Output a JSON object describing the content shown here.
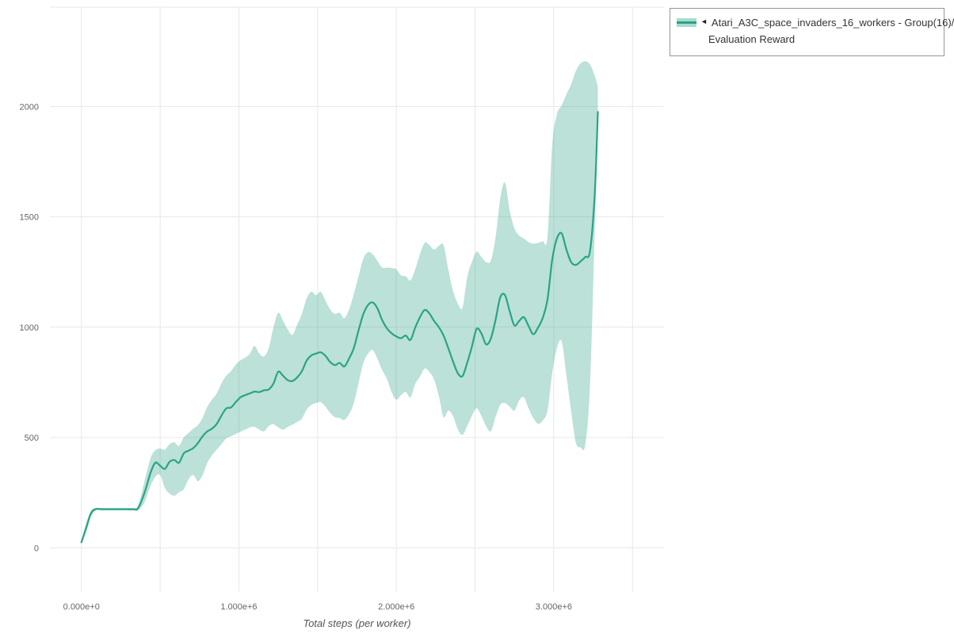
{
  "colors": {
    "line": "#2aa386",
    "band": "#2aa386",
    "band_opacity": 0.32,
    "grid": "#e7e7e7",
    "tick_text": "#666666",
    "axis_title_text": "#555555",
    "legend_border": "#979797",
    "legend_text": "#333333"
  },
  "legend": {
    "collapse_arrow": "◄",
    "series_label_line1": "Atari_A3C_space_invaders_16_workers - Group(16)/",
    "series_label_line2": "Evaluation Reward"
  },
  "chart_data": {
    "type": "line",
    "title": "",
    "xlabel": "Total steps (per worker)",
    "ylabel": "",
    "grid": true,
    "legend_position": "top-right",
    "x_unit_note": "x values in millions of steps",
    "xlim": [
      -0.2,
      3.7
    ],
    "ylim": [
      -200,
      2450
    ],
    "x_ticks": [
      {
        "v": 0,
        "label": "0.000e+0"
      },
      {
        "v": 1,
        "label": "1.000e+6"
      },
      {
        "v": 2,
        "label": "2.000e+6"
      },
      {
        "v": 3,
        "label": "3.000e+6"
      }
    ],
    "x_minor_grid": [
      0.5,
      1.5,
      2.5,
      3.5
    ],
    "y_ticks": [
      {
        "v": 0,
        "label": "0"
      },
      {
        "v": 500,
        "label": "500"
      },
      {
        "v": 1000,
        "label": "1000"
      },
      {
        "v": 1500,
        "label": "1500"
      },
      {
        "v": 2000,
        "label": "2000"
      },
      {
        "v": 2450,
        "label": ""
      }
    ],
    "series": [
      {
        "name": "Atari_A3C_space_invaders_16_workers - Group(16)/Evaluation Reward",
        "points_format": [
          "x_millions",
          "mean",
          "lower",
          "upper"
        ],
        "points": [
          [
            0.0,
            25,
            20,
            30
          ],
          [
            0.03,
            90,
            70,
            110
          ],
          [
            0.06,
            155,
            140,
            168
          ],
          [
            0.09,
            175,
            170,
            181
          ],
          [
            0.13,
            175,
            170,
            181
          ],
          [
            0.17,
            175,
            170,
            181
          ],
          [
            0.21,
            175,
            170,
            181
          ],
          [
            0.25,
            175,
            170,
            181
          ],
          [
            0.29,
            175,
            170,
            181
          ],
          [
            0.33,
            175,
            170,
            181
          ],
          [
            0.36,
            180,
            170,
            192
          ],
          [
            0.4,
            248,
            205,
            300
          ],
          [
            0.44,
            342,
            282,
            408
          ],
          [
            0.47,
            386,
            322,
            442
          ],
          [
            0.5,
            372,
            330,
            450
          ],
          [
            0.53,
            358,
            272,
            445
          ],
          [
            0.56,
            390,
            246,
            470
          ],
          [
            0.59,
            398,
            236,
            478
          ],
          [
            0.62,
            386,
            252,
            462
          ],
          [
            0.65,
            428,
            266,
            500
          ],
          [
            0.68,
            440,
            310,
            520
          ],
          [
            0.71,
            452,
            330,
            540
          ],
          [
            0.74,
            475,
            302,
            556
          ],
          [
            0.77,
            506,
            330,
            590
          ],
          [
            0.8,
            528,
            386,
            640
          ],
          [
            0.83,
            540,
            420,
            672
          ],
          [
            0.86,
            562,
            446,
            700
          ],
          [
            0.89,
            600,
            470,
            746
          ],
          [
            0.92,
            632,
            496,
            780
          ],
          [
            0.95,
            636,
            506,
            800
          ],
          [
            0.98,
            660,
            516,
            830
          ],
          [
            1.01,
            682,
            526,
            850
          ],
          [
            1.04,
            692,
            536,
            862
          ],
          [
            1.07,
            700,
            546,
            880
          ],
          [
            1.1,
            708,
            548,
            915
          ],
          [
            1.13,
            706,
            536,
            880
          ],
          [
            1.16,
            714,
            528,
            868
          ],
          [
            1.19,
            718,
            552,
            905
          ],
          [
            1.22,
            745,
            560,
            1000
          ],
          [
            1.25,
            798,
            546,
            1065
          ],
          [
            1.28,
            780,
            536,
            1030
          ],
          [
            1.31,
            760,
            548,
            990
          ],
          [
            1.34,
            756,
            558,
            965
          ],
          [
            1.37,
            772,
            570,
            1010
          ],
          [
            1.4,
            800,
            586,
            1060
          ],
          [
            1.43,
            848,
            626,
            1130
          ],
          [
            1.46,
            872,
            648,
            1160
          ],
          [
            1.49,
            880,
            656,
            1145
          ],
          [
            1.52,
            886,
            660,
            1160
          ],
          [
            1.55,
            870,
            640,
            1120
          ],
          [
            1.58,
            842,
            612,
            1080
          ],
          [
            1.61,
            828,
            592,
            1060
          ],
          [
            1.64,
            838,
            588,
            1065
          ],
          [
            1.67,
            822,
            580,
            1040
          ],
          [
            1.7,
            858,
            606,
            1080
          ],
          [
            1.73,
            905,
            656,
            1150
          ],
          [
            1.76,
            985,
            746,
            1230
          ],
          [
            1.79,
            1058,
            836,
            1310
          ],
          [
            1.82,
            1100,
            880,
            1340
          ],
          [
            1.85,
            1112,
            896,
            1330
          ],
          [
            1.88,
            1085,
            856,
            1300
          ],
          [
            1.91,
            1032,
            806,
            1270
          ],
          [
            1.94,
            995,
            766,
            1270
          ],
          [
            1.97,
            972,
            706,
            1268
          ],
          [
            2.0,
            958,
            672,
            1262
          ],
          [
            2.03,
            950,
            692,
            1235
          ],
          [
            2.06,
            962,
            706,
            1230
          ],
          [
            2.09,
            942,
            682,
            1212
          ],
          [
            2.12,
            998,
            742,
            1262
          ],
          [
            2.15,
            1045,
            776,
            1330
          ],
          [
            2.18,
            1078,
            812,
            1382
          ],
          [
            2.21,
            1062,
            798,
            1372
          ],
          [
            2.24,
            1028,
            762,
            1352
          ],
          [
            2.27,
            1000,
            688,
            1368
          ],
          [
            2.3,
            962,
            592,
            1372
          ],
          [
            2.33,
            905,
            622,
            1262
          ],
          [
            2.36,
            845,
            598,
            1165
          ],
          [
            2.39,
            792,
            538,
            1108
          ],
          [
            2.42,
            778,
            512,
            1088
          ],
          [
            2.45,
            838,
            552,
            1225
          ],
          [
            2.48,
            912,
            598,
            1295
          ],
          [
            2.51,
            992,
            632,
            1342
          ],
          [
            2.54,
            972,
            598,
            1318
          ],
          [
            2.57,
            922,
            552,
            1295
          ],
          [
            2.6,
            948,
            528,
            1302
          ],
          [
            2.63,
            1032,
            592,
            1405
          ],
          [
            2.66,
            1135,
            648,
            1582
          ],
          [
            2.69,
            1145,
            656,
            1655
          ],
          [
            2.72,
            1072,
            640,
            1528
          ],
          [
            2.75,
            1008,
            622,
            1448
          ],
          [
            2.78,
            1028,
            668,
            1415
          ],
          [
            2.81,
            1045,
            682,
            1402
          ],
          [
            2.84,
            1005,
            632,
            1385
          ],
          [
            2.87,
            968,
            588,
            1378
          ],
          [
            2.9,
            998,
            562,
            1382
          ],
          [
            2.93,
            1042,
            578,
            1390
          ],
          [
            2.96,
            1125,
            622,
            1408
          ],
          [
            2.99,
            1305,
            792,
            1825
          ],
          [
            3.02,
            1402,
            905,
            1965
          ],
          [
            3.05,
            1425,
            935,
            2005
          ],
          [
            3.08,
            1352,
            782,
            2055
          ],
          [
            3.11,
            1295,
            622,
            2100
          ],
          [
            3.14,
            1282,
            478,
            2160
          ],
          [
            3.17,
            1298,
            455,
            2195
          ],
          [
            3.2,
            1318,
            468,
            2205
          ],
          [
            3.23,
            1345,
            735,
            2190
          ],
          [
            3.26,
            1600,
            1430,
            2140
          ],
          [
            3.28,
            1975,
            1905,
            2090
          ]
        ]
      }
    ]
  }
}
